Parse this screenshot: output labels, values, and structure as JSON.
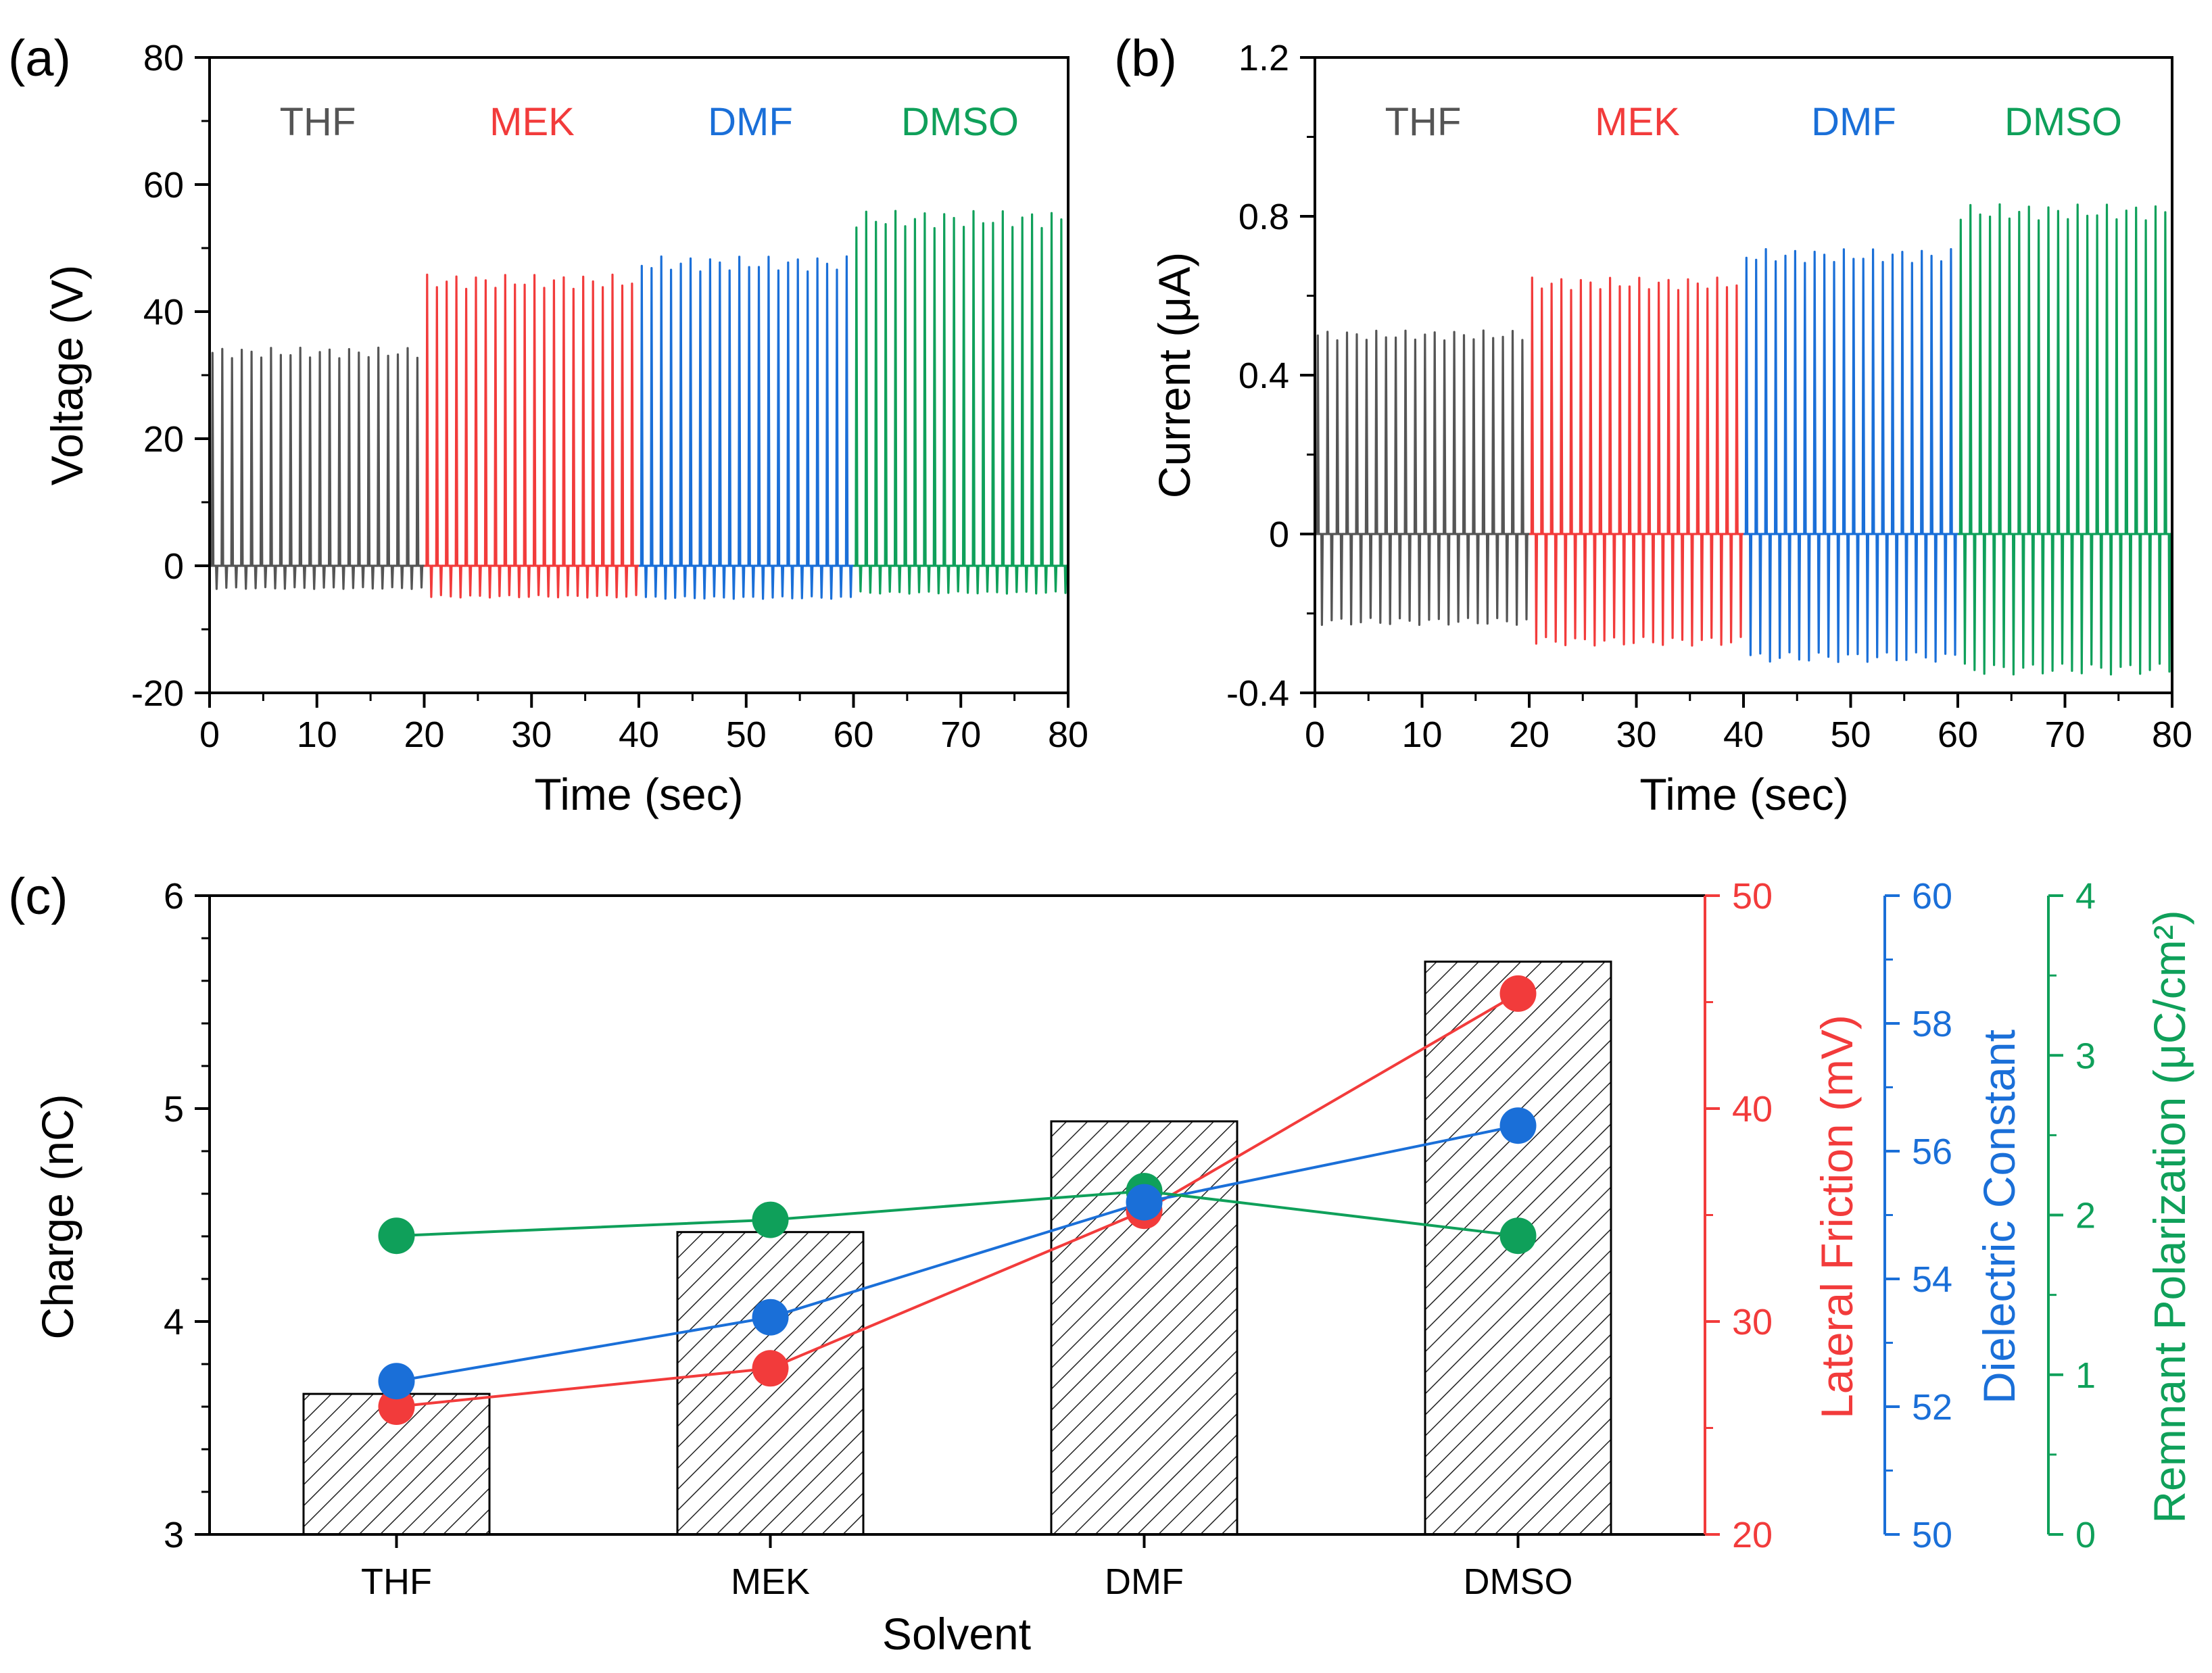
{
  "chart_data": [
    {
      "id": "a",
      "panel_label": "(a)",
      "type": "line",
      "xlabel": "Time (sec)",
      "ylabel": "Voltage (V)",
      "xlim": [
        0,
        80
      ],
      "ylim": [
        -20,
        80
      ],
      "x_ticks": [
        0,
        10,
        20,
        30,
        40,
        50,
        60,
        70,
        80
      ],
      "y_ticks": [
        -20,
        0,
        20,
        40,
        60,
        80
      ],
      "series": [
        {
          "name": "THF",
          "color": "#555555",
          "t_start": 0,
          "t_end": 20,
          "pulse_count": 22,
          "baseline": 0,
          "peak": 33.5,
          "negative_peak": -3.5
        },
        {
          "name": "MEK",
          "color": "#f23b3b",
          "t_start": 20,
          "t_end": 40,
          "pulse_count": 22,
          "baseline": 0,
          "peak": 44.7,
          "negative_peak": -4.8
        },
        {
          "name": "DMF",
          "color": "#1a6fd8",
          "t_start": 40,
          "t_end": 60,
          "pulse_count": 22,
          "baseline": 0,
          "peak": 47.5,
          "negative_peak": -5.0
        },
        {
          "name": "DMSO",
          "color": "#0fa05a",
          "t_start": 60,
          "t_end": 80,
          "pulse_count": 22,
          "baseline": 0,
          "peak": 54.5,
          "negative_peak": -4.2
        }
      ]
    },
    {
      "id": "b",
      "panel_label": "(b)",
      "type": "line",
      "xlabel": "Time (sec)",
      "ylabel": "Current (μA)",
      "xlim": [
        0,
        80
      ],
      "ylim": [
        -0.4,
        1.2
      ],
      "x_ticks": [
        0,
        10,
        20,
        30,
        40,
        50,
        60,
        70,
        80
      ],
      "y_ticks": [
        -0.4,
        0,
        0.4,
        0.8,
        1.2
      ],
      "y_tick_labels": [
        "-0.4",
        "0",
        "0.4",
        "0.8",
        "1.2"
      ],
      "series": [
        {
          "name": "THF",
          "color": "#555555",
          "t_start": 0,
          "t_end": 20,
          "pulse_count": 22,
          "baseline": 0,
          "peak": 0.5,
          "negative_peak": -0.22
        },
        {
          "name": "MEK",
          "color": "#f23b3b",
          "t_start": 20,
          "t_end": 40,
          "pulse_count": 22,
          "baseline": 0,
          "peak": 0.63,
          "negative_peak": -0.27
        },
        {
          "name": "DMF",
          "color": "#1a6fd8",
          "t_start": 40,
          "t_end": 60,
          "pulse_count": 22,
          "baseline": 0,
          "peak": 0.7,
          "negative_peak": -0.31
        },
        {
          "name": "DMSO",
          "color": "#0fa05a",
          "t_start": 60,
          "t_end": 80,
          "pulse_count": 22,
          "baseline": 0,
          "peak": 0.81,
          "negative_peak": -0.34
        }
      ]
    },
    {
      "id": "c",
      "panel_label": "(c)",
      "type": "bar",
      "xlabel": "Solvent",
      "categories": [
        "THF",
        "MEK",
        "DMF",
        "DMSO"
      ],
      "bars": {
        "name": "Charge (nC)",
        "values": [
          3.66,
          4.42,
          4.94,
          5.69
        ],
        "pattern": "hatched"
      },
      "axes": {
        "charge": {
          "label": "Charge (nC)",
          "color": "#000000",
          "lim": [
            3,
            6
          ],
          "ticks": [
            3,
            4,
            5,
            6
          ]
        },
        "friction": {
          "label": "Lateral Friction (mV)",
          "color": "#f23b3b",
          "lim": [
            20,
            50
          ],
          "ticks": [
            20,
            30,
            40,
            50
          ]
        },
        "dielectric": {
          "label": "Dielectric Constant",
          "color": "#1a6fd8",
          "lim": [
            50,
            60
          ],
          "ticks": [
            50,
            52,
            54,
            56,
            58,
            60
          ]
        },
        "polarization": {
          "label": "Remnant Polarization (μC/cm²)",
          "color": "#0fa05a",
          "lim": [
            0,
            4
          ],
          "ticks": [
            0,
            1,
            2,
            3,
            4
          ]
        }
      },
      "series": [
        {
          "name": "Lateral Friction",
          "axis": "friction",
          "color": "#f23b3b",
          "values": [
            26.0,
            27.8,
            35.2,
            45.4
          ]
        },
        {
          "name": "Dielectric Constant",
          "axis": "dielectric",
          "color": "#1a6fd8",
          "values": [
            52.4,
            53.4,
            55.2,
            56.4
          ]
        },
        {
          "name": "Remnant Polarization",
          "axis": "polarization",
          "color": "#0fa05a",
          "values": [
            1.87,
            1.97,
            2.15,
            1.87
          ]
        }
      ]
    }
  ]
}
